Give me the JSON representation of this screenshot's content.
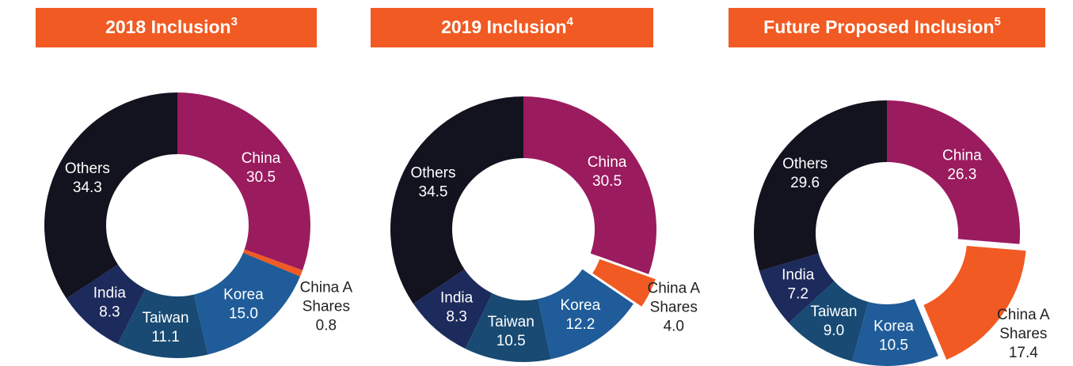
{
  "chart_data": [
    {
      "type": "donut",
      "title": "2018 Inclusion",
      "footnote": "3",
      "categories": [
        "China",
        "China A Shares",
        "Korea",
        "Taiwan",
        "India",
        "Others"
      ],
      "values": [
        30.5,
        0.8,
        15.0,
        11.1,
        8.3,
        34.3
      ],
      "value_labels": [
        "30.5",
        "0.8",
        "15.0",
        "11.1",
        "8.3",
        "34.3"
      ],
      "colors": [
        "#9b1b5f",
        "#f15a22",
        "#1f5c99",
        "#184a73",
        "#1c2a5c",
        "#12131f"
      ],
      "explode": [
        false,
        false,
        false,
        false,
        false,
        false
      ]
    },
    {
      "type": "donut",
      "title": "2019 Inclusion",
      "footnote": "4",
      "categories": [
        "China",
        "China A Shares",
        "Korea",
        "Taiwan",
        "India",
        "Others"
      ],
      "values": [
        30.5,
        4.0,
        12.2,
        10.5,
        8.3,
        34.5
      ],
      "value_labels": [
        "30.5",
        "4.0",
        "12.2",
        "10.5",
        "8.3",
        "34.5"
      ],
      "colors": [
        "#9b1b5f",
        "#f15a22",
        "#1f5c99",
        "#184a73",
        "#1c2a5c",
        "#12131f"
      ],
      "explode": [
        false,
        true,
        false,
        false,
        false,
        false
      ]
    },
    {
      "type": "donut",
      "title": "Future Proposed Inclusion",
      "footnote": "5",
      "categories": [
        "China",
        "China A Shares",
        "Korea",
        "Taiwan",
        "India",
        "Others"
      ],
      "values": [
        26.3,
        17.4,
        10.5,
        9.0,
        7.2,
        29.6
      ],
      "value_labels": [
        "26.3",
        "17.4",
        "10.5",
        "9.0",
        "7.2",
        "29.6"
      ],
      "colors": [
        "#9b1b5f",
        "#f15a22",
        "#1f5c99",
        "#184a73",
        "#1c2a5c",
        "#12131f"
      ],
      "explode": [
        false,
        true,
        false,
        false,
        false,
        false
      ]
    }
  ]
}
